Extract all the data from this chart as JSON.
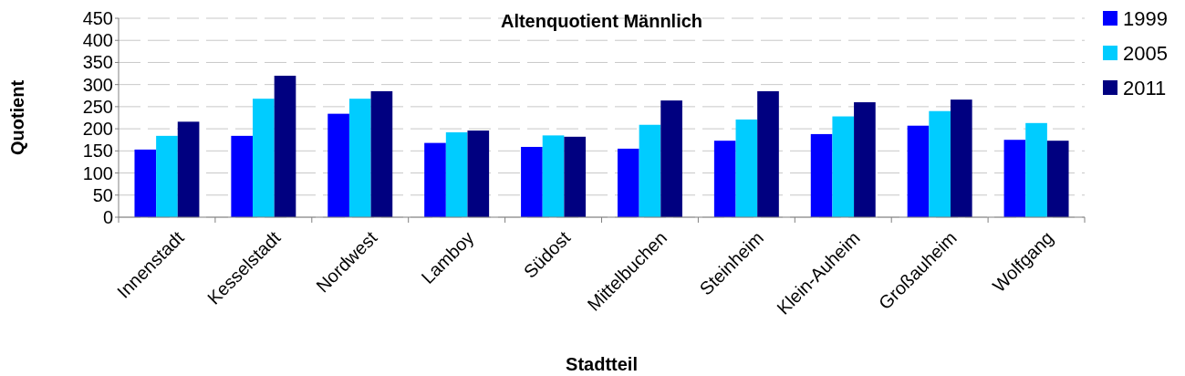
{
  "chart_data": {
    "type": "bar",
    "title": "Altenquotient Männlich",
    "xlabel": "Stadtteil",
    "ylabel": "Quotient",
    "categories": [
      "Innenstadt",
      "Kesselstadt",
      "Nordwest",
      "Lamboy",
      "Südost",
      "Mittelbuchen",
      "Steinheim",
      "Klein-Auheim",
      "Großauheim",
      "Wolfgang"
    ],
    "series": [
      {
        "name": "1999",
        "color": "#0000ff",
        "values": [
          153,
          184,
          234,
          168,
          159,
          155,
          173,
          188,
          207,
          175
        ]
      },
      {
        "name": "2005",
        "color": "#00ccff",
        "values": [
          184,
          268,
          268,
          192,
          185,
          209,
          221,
          228,
          240,
          213
        ]
      },
      {
        "name": "2011",
        "color": "#000080",
        "values": [
          216,
          320,
          285,
          196,
          182,
          264,
          285,
          260,
          266,
          173
        ]
      }
    ],
    "ylim": [
      0,
      450
    ],
    "yticks": [
      0,
      50,
      100,
      150,
      200,
      250,
      300,
      350,
      400,
      450
    ],
    "grid": "y",
    "legend": "top right"
  }
}
